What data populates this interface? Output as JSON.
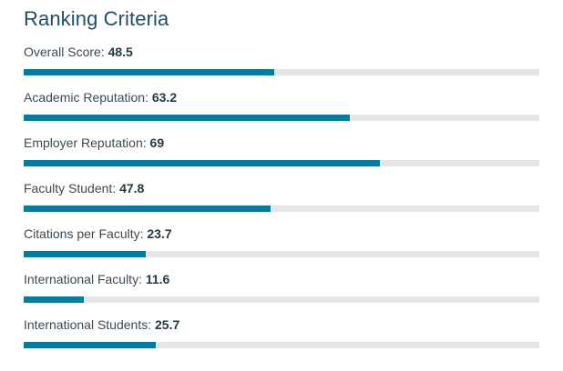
{
  "panel": {
    "title": "Ranking Criteria",
    "accent_color": "#0a7a9b",
    "track_color": "#e6e6e6"
  },
  "criteria": [
    {
      "label": "Overall Score",
      "separator": ": ",
      "value": "48.5",
      "fraction": 0.485
    },
    {
      "label": "Academic Reputation",
      "separator": ": ",
      "value": "63.2",
      "fraction": 0.632
    },
    {
      "label": "Employer Reputation",
      "separator": ": ",
      "value": "69",
      "fraction": 0.69
    },
    {
      "label": "Faculty Student",
      "separator": ": ",
      "value": "47.8",
      "fraction": 0.478
    },
    {
      "label": "Citations per Faculty",
      "separator": ": ",
      "value": "23.7",
      "fraction": 0.237
    },
    {
      "label": "International Faculty",
      "separator": ": ",
      "value": "11.6",
      "fraction": 0.116
    },
    {
      "label": "International Students",
      "separator": ": ",
      "value": "25.7",
      "fraction": 0.257
    }
  ]
}
